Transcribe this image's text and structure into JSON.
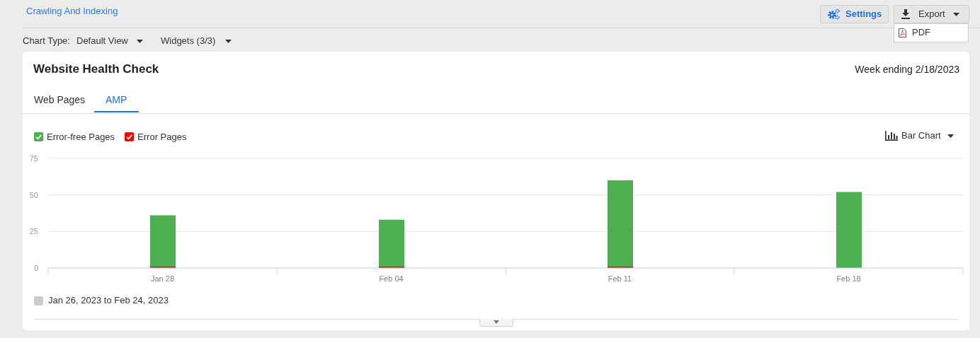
{
  "chart_data": {
    "type": "bar",
    "title": "Website Health Check",
    "subtitle": "Week ending 2/18/2023",
    "categories": [
      "Jan 28",
      "Feb 04",
      "Feb 11",
      "Feb 18"
    ],
    "series": [
      {
        "name": "Error Pages",
        "color": "#ff0000",
        "values": [
          1,
          1,
          1,
          0
        ]
      },
      {
        "name": "Error-free Pages",
        "color": "#4caf50",
        "values": [
          35,
          32,
          59,
          52
        ]
      }
    ],
    "stacked": true,
    "ylim": [
      0,
      75
    ],
    "yticks": [
      0,
      25,
      50,
      75
    ],
    "grid": "y",
    "legend": "top left",
    "annotations": [
      "Crawling And Indexing",
      "Chart Type:",
      "Default View",
      "Widgets (3/3)",
      "Settings",
      "Export",
      "PDF",
      "Web Pages",
      "AMP",
      "Bar Chart",
      "Jan 26, 2023 to Feb 24, 2023"
    ]
  }
}
